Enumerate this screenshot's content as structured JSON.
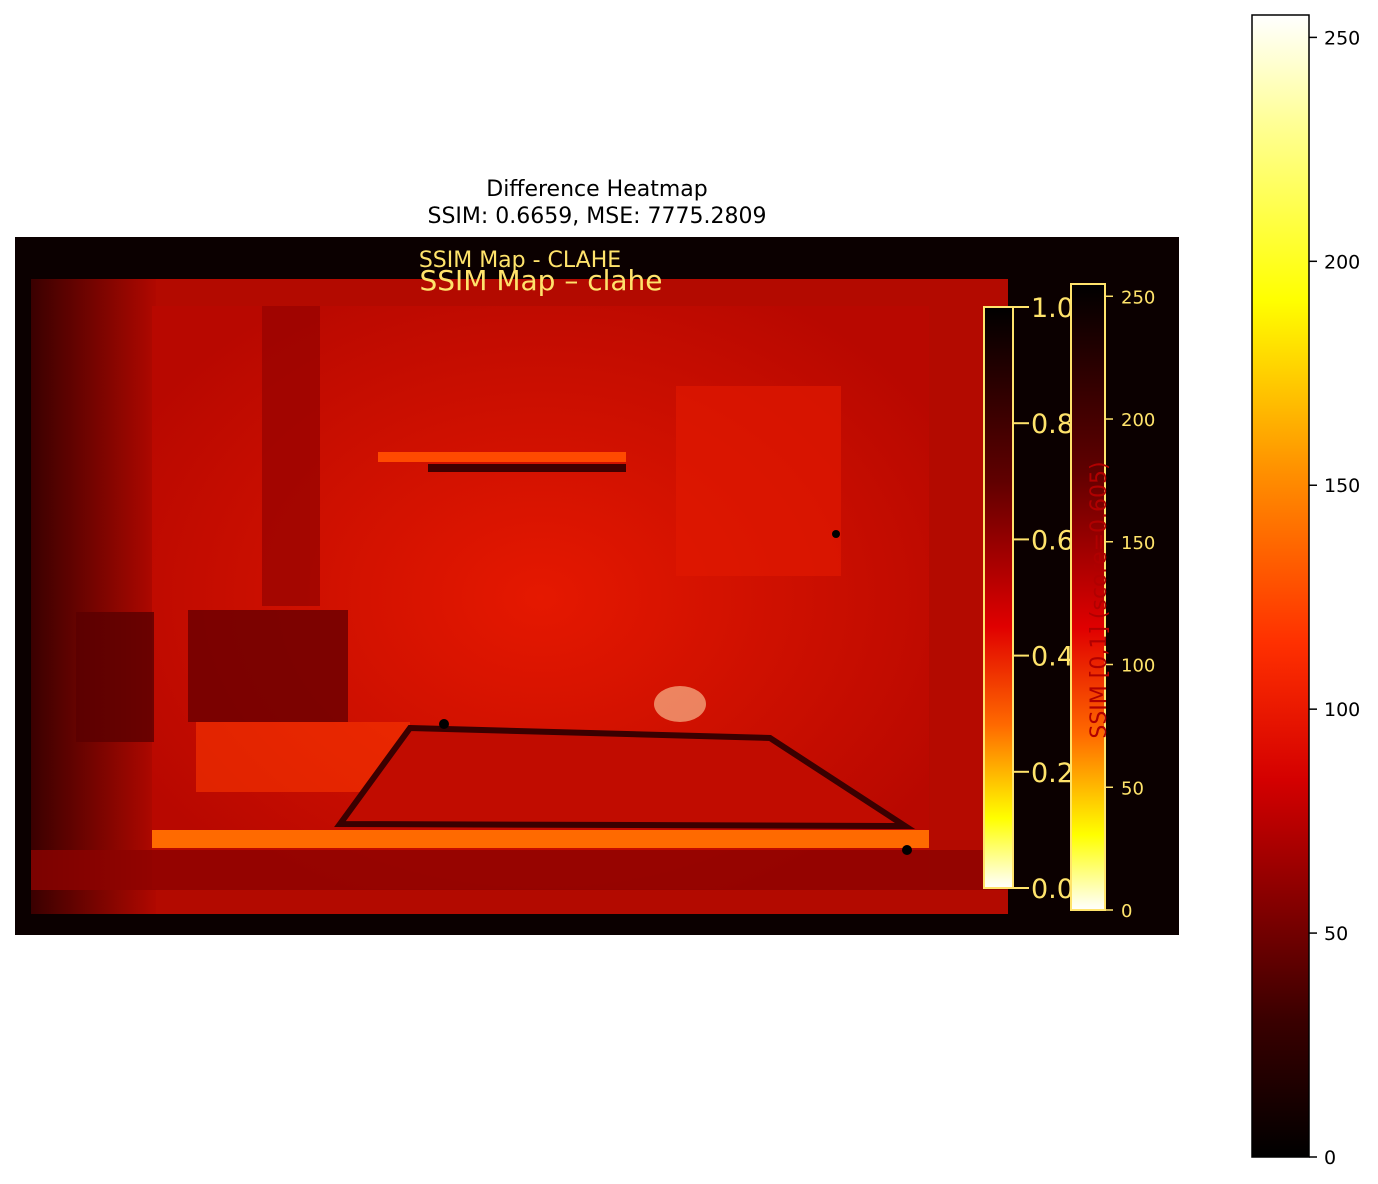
{
  "chart_data": [
    {
      "type": "heatmap",
      "title": "Difference Heatmap",
      "subtitle": "SSIM: 0.6659, MSE: 7775.2809",
      "colormap": "hot",
      "colorbar": {
        "min": 0,
        "max": 255,
        "ticks": [
          0,
          50,
          100,
          150,
          200,
          250
        ]
      },
      "grid": false,
      "axes_visible": false
    },
    {
      "type": "heatmap",
      "title": "SSIM Map - CLAHE",
      "embedded_in_image": true
    },
    {
      "type": "heatmap",
      "title": "SSIM Map – clahe",
      "embedded_in_image": true,
      "colorbars": [
        {
          "min": 0.0,
          "max": 1.0,
          "ticks": [
            "0.0",
            "0.2",
            "0.4",
            "0.6",
            "0.8",
            "1.0"
          ]
        },
        {
          "min": 0,
          "max": 255,
          "ticks": [
            0,
            50,
            100,
            150,
            200,
            250
          ],
          "label": "SSIM [0,1] (score=0.605)"
        }
      ]
    }
  ],
  "colors": {
    "hot_stops": [
      "#0b0000",
      "#e00000",
      "#ff6f00",
      "#ffff00",
      "#ffffff"
    ],
    "inner_text": "#ffe36b",
    "dominant_field": "#d81000"
  }
}
